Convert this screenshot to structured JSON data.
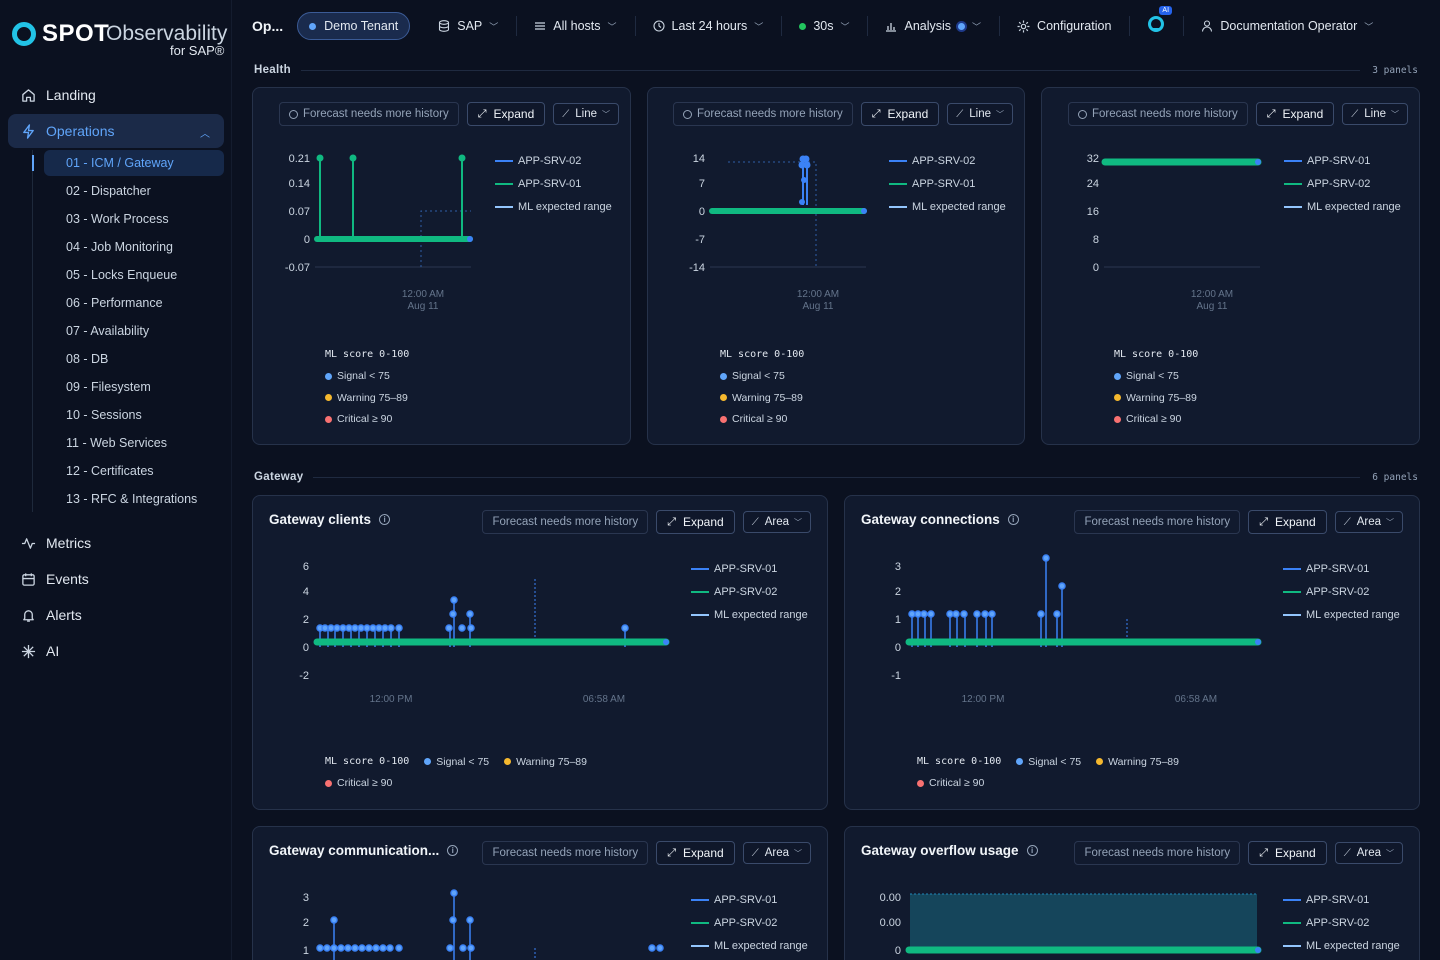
{
  "brand": {
    "spot": "SPOT",
    "observability": "Observability",
    "for_sap": "for SAP®"
  },
  "sidebar": {
    "items": [
      {
        "label": "Landing",
        "icon": "home-icon"
      },
      {
        "label": "Operations",
        "icon": "bolt-icon"
      },
      {
        "label": "Metrics",
        "icon": "activity-icon"
      },
      {
        "label": "Events",
        "icon": "calendar-icon"
      },
      {
        "label": "Alerts",
        "icon": "bell-icon"
      },
      {
        "label": "AI",
        "icon": "sparkle-icon"
      }
    ],
    "operations_sub": [
      "01 - ICM / Gateway",
      "02 - Dispatcher",
      "03 - Work Process",
      "04 - Job Monitoring",
      "05 - Locks Enqueue",
      "06 - Performance",
      "07 - Availability",
      "08 - DB",
      "09 - Filesystem",
      "10 - Sessions",
      "11 - Web Services",
      "12 - Certificates",
      "13 - RFC & Integrations"
    ]
  },
  "topbar": {
    "title": "Op...",
    "tenant": "Demo Tenant",
    "system": "SAP",
    "hosts": "All hosts",
    "time_range": "Last 24 hours",
    "refresh": "30s",
    "analysis": "Analysis",
    "configuration": "Configuration",
    "ai_badge": "AI",
    "user": "Documentation Operator"
  },
  "sections": {
    "health": {
      "label": "Health",
      "count": "3 panels"
    },
    "gateway": {
      "label": "Gateway",
      "count": "6 panels"
    }
  },
  "common": {
    "forecast": "Forecast needs more history",
    "expand": "Expand",
    "ml_score": "ML score 0-100",
    "signal": "Signal < 75",
    "warning": "Warning 75–89",
    "critical": "Critical ≥ 90",
    "ml_range": "ML expected range"
  },
  "colors": {
    "series_blue": "#3b82f6",
    "series_green": "#10b981",
    "accent": "#60a5fa",
    "warning": "#f5b82e",
    "critical": "#f87171"
  },
  "health_panels": [
    {
      "chart_type": "Line",
      "legend": [
        "APP-SRV-02",
        "APP-SRV-01",
        "ML expected range"
      ],
      "x_tick": [
        "12:00 AM",
        "Aug 11"
      ],
      "y_ticks": [
        "0.21",
        "0.14",
        "0.07",
        "0",
        "-0.07"
      ]
    },
    {
      "chart_type": "Line",
      "legend": [
        "APP-SRV-02",
        "APP-SRV-01",
        "ML expected range"
      ],
      "x_tick": [
        "12:00 AM",
        "Aug 11"
      ],
      "y_ticks": [
        "14",
        "7",
        "0",
        "-7",
        "-14"
      ]
    },
    {
      "chart_type": "Line",
      "legend": [
        "APP-SRV-01",
        "APP-SRV-02",
        "ML expected range"
      ],
      "x_tick": [
        "12:00 AM",
        "Aug 11"
      ],
      "y_ticks": [
        "32",
        "24",
        "16",
        "8",
        "0"
      ]
    }
  ],
  "gateway_panels": [
    {
      "title": "Gateway clients",
      "chart_type": "Area",
      "legend": [
        "APP-SRV-01",
        "APP-SRV-02",
        "ML expected range"
      ],
      "x_ticks": [
        "12:00 PM",
        "06:58 AM"
      ],
      "y_ticks": [
        "6",
        "4",
        "2",
        "0",
        "-2"
      ]
    },
    {
      "title": "Gateway connections",
      "chart_type": "Area",
      "legend": [
        "APP-SRV-01",
        "APP-SRV-02",
        "ML expected range"
      ],
      "x_ticks": [
        "12:00 PM",
        "06:58 AM"
      ],
      "y_ticks": [
        "3",
        "2",
        "1",
        "0",
        "-1"
      ]
    },
    {
      "title": "Gateway communication...",
      "chart_type": "Area",
      "legend": [
        "APP-SRV-01",
        "APP-SRV-02",
        "ML expected range"
      ],
      "y_ticks": [
        "3",
        "2",
        "1"
      ]
    },
    {
      "title": "Gateway overflow usage",
      "chart_type": "Area",
      "legend": [
        "APP-SRV-01",
        "APP-SRV-02",
        "ML expected range"
      ],
      "y_ticks": [
        "0.00",
        "0.00",
        "0"
      ]
    }
  ]
}
